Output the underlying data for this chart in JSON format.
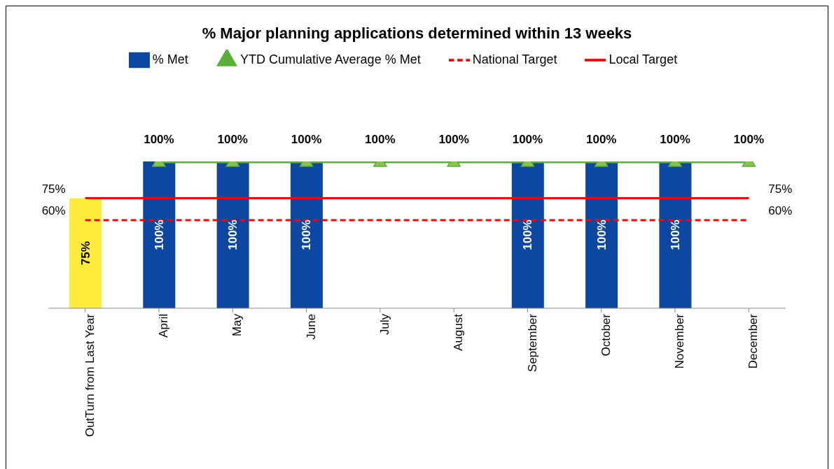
{
  "chart_data": {
    "type": "bar",
    "title": "% Major planning applications determined within 13 weeks",
    "categories": [
      "OutTurn from Last Year",
      "April",
      "May",
      "June",
      "July",
      "August",
      "September",
      "October",
      "November",
      "December"
    ],
    "legend": "top",
    "grid": false,
    "series": [
      {
        "name": "% Met",
        "color": "#0d47a1",
        "colors": [
          "#ffeb3b",
          "#0d47a1",
          "#0d47a1",
          "#0d47a1",
          "#0d47a1",
          "#0d47a1",
          "#0d47a1",
          "#0d47a1",
          "#0d47a1",
          "#0d47a1"
        ],
        "values": [
          75,
          100,
          100,
          100,
          null,
          null,
          100,
          100,
          100,
          null
        ],
        "value_labels": [
          "75%",
          "100%",
          "100%",
          "100%",
          null,
          null,
          "100%",
          "100%",
          "100%",
          null
        ]
      },
      {
        "name": "YTD Cumulative Average % Met",
        "type": "line",
        "color": "#5aae3a",
        "marker": "triangle",
        "line_style": "solid",
        "values": [
          null,
          100,
          100,
          100,
          100,
          100,
          100,
          100,
          100,
          100
        ],
        "value_labels": [
          null,
          "100%",
          "100%",
          "100%",
          "100%",
          "100%",
          "100%",
          "100%",
          "100%",
          "100%"
        ]
      },
      {
        "name": "National Target",
        "type": "line",
        "color": "#ff0000",
        "marker": "none",
        "line_style": "dashed",
        "values": [
          60,
          60,
          60,
          60,
          60,
          60,
          60,
          60,
          60,
          60
        ],
        "value_labels": [
          "60%",
          null,
          null,
          null,
          null,
          null,
          null,
          null,
          null,
          "60%"
        ]
      },
      {
        "name": "Local Target",
        "type": "line",
        "color": "#ff0000",
        "marker": "none",
        "line_style": "solid",
        "values": [
          75,
          75,
          75,
          75,
          75,
          75,
          75,
          75,
          75,
          75
        ],
        "value_labels": [
          "75%",
          null,
          null,
          null,
          null,
          null,
          null,
          null,
          null,
          "75%"
        ]
      }
    ]
  }
}
